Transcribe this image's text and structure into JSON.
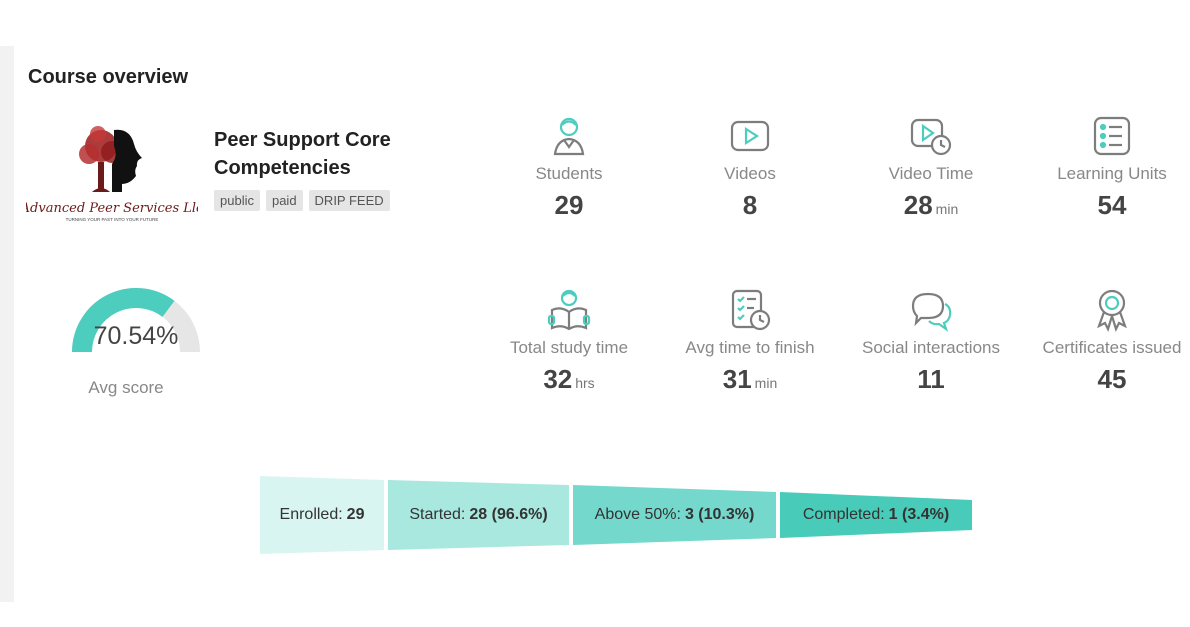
{
  "page": {
    "title": "Course overview"
  },
  "course": {
    "name": "Peer Support Core Competencies",
    "logo_text": "Advanced Peer Services Llc",
    "logo_tagline": "TURNING YOUR PAST INTO YOUR FUTURE",
    "tags": [
      "public",
      "paid",
      "DRIP FEED"
    ]
  },
  "stats": {
    "students": {
      "label": "Students",
      "value": "29",
      "unit": "",
      "icon": "student-icon"
    },
    "videos": {
      "label": "Videos",
      "value": "8",
      "unit": "",
      "icon": "video-icon"
    },
    "video_time": {
      "label": "Video Time",
      "value": "28",
      "unit": "min",
      "icon": "video-time-icon"
    },
    "learning_units": {
      "label": "Learning Units",
      "value": "54",
      "unit": "",
      "icon": "list-icon"
    },
    "total_study_time": {
      "label": "Total study time",
      "value": "32",
      "unit": "hrs",
      "icon": "reading-icon"
    },
    "avg_time_to_finish": {
      "label": "Avg time to finish",
      "value": "31",
      "unit": "min",
      "icon": "checklist-clock-icon"
    },
    "social_interactions": {
      "label": "Social interactions",
      "value": "11",
      "unit": "",
      "icon": "chat-icon"
    },
    "certificates_issued": {
      "label": "Certificates issued",
      "value": "45",
      "unit": "",
      "icon": "award-icon"
    }
  },
  "avg_score": {
    "label": "Avg score",
    "value": "70.54%",
    "fraction": 0.7054
  },
  "funnel": [
    {
      "label": "Enrolled:",
      "value": "29",
      "color": "#d9f5f1"
    },
    {
      "label": "Started:",
      "value": "28 (96.6%)",
      "color": "#a8e8df"
    },
    {
      "label": "Above 50%:",
      "value": "3 (10.3%)",
      "color": "#74d9cc"
    },
    {
      "label": "Completed:",
      "value": "1 (3.4%)",
      "color": "#48cbb9"
    }
  ],
  "colors": {
    "accent": "#4ccdbd",
    "gauge_track": "#e6e6e6"
  }
}
